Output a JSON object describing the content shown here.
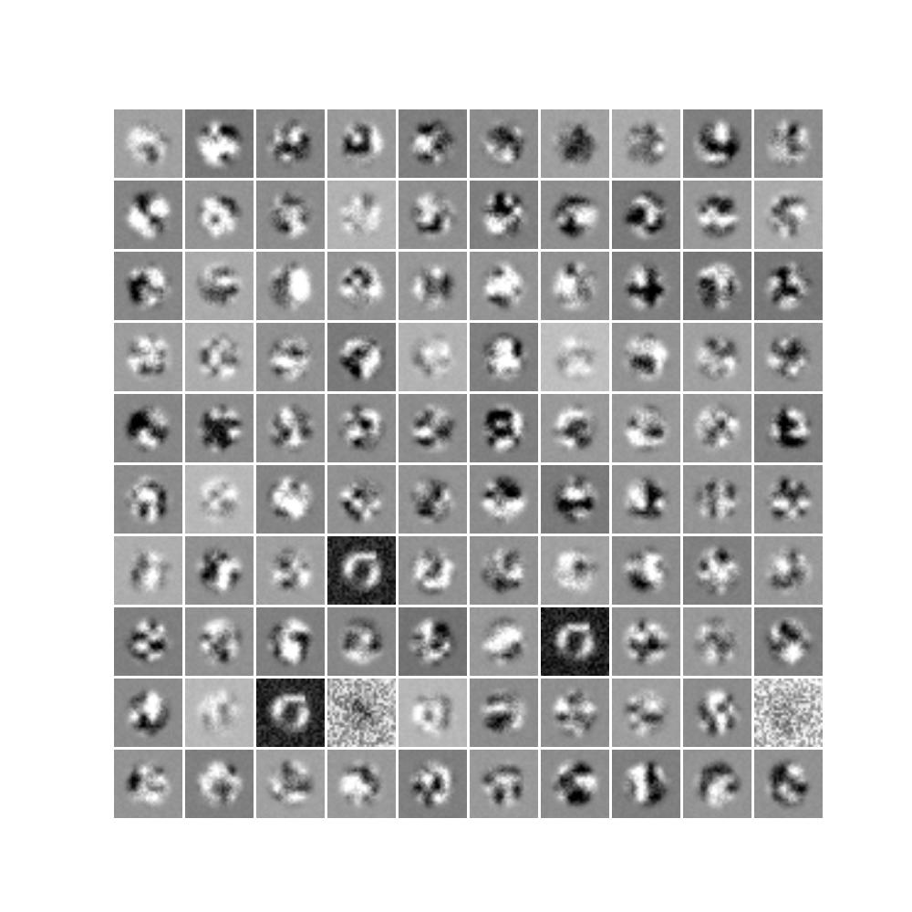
{
  "figure": {
    "rows": 10,
    "cols": 10,
    "background_color": "#ffffff",
    "colormap": "gray"
  },
  "tiles": [
    {
      "bg": 0.63,
      "c": 0.45,
      "d": 0
    },
    {
      "bg": 0.47,
      "c": 0.7,
      "d": 0
    },
    {
      "bg": 0.52,
      "c": 0.6,
      "d": 0
    },
    {
      "bg": 0.6,
      "c": 0.55,
      "d": 0
    },
    {
      "bg": 0.5,
      "c": 0.7,
      "d": 0
    },
    {
      "bg": 0.55,
      "c": 0.55,
      "d": 0
    },
    {
      "bg": 0.63,
      "c": 0.5,
      "d": 0
    },
    {
      "bg": 0.67,
      "c": 0.45,
      "d": 0
    },
    {
      "bg": 0.5,
      "c": 0.7,
      "d": 0
    },
    {
      "bg": 0.55,
      "c": 0.6,
      "d": 0
    },
    {
      "bg": 0.52,
      "c": 0.65,
      "d": 0
    },
    {
      "bg": 0.58,
      "c": 0.55,
      "d": 0
    },
    {
      "bg": 0.55,
      "c": 0.6,
      "d": 0
    },
    {
      "bg": 0.7,
      "c": 0.4,
      "d": 0
    },
    {
      "bg": 0.56,
      "c": 0.55,
      "d": 0
    },
    {
      "bg": 0.5,
      "c": 0.75,
      "d": 0
    },
    {
      "bg": 0.56,
      "c": 0.6,
      "d": 0
    },
    {
      "bg": 0.48,
      "c": 0.6,
      "d": 0
    },
    {
      "bg": 0.6,
      "c": 0.55,
      "d": 0
    },
    {
      "bg": 0.67,
      "c": 0.5,
      "d": 0
    },
    {
      "bg": 0.53,
      "c": 0.65,
      "d": 0
    },
    {
      "bg": 0.67,
      "c": 0.55,
      "d": 0
    },
    {
      "bg": 0.6,
      "c": 0.55,
      "d": 0
    },
    {
      "bg": 0.58,
      "c": 0.6,
      "d": 0
    },
    {
      "bg": 0.6,
      "c": 0.5,
      "d": 0
    },
    {
      "bg": 0.58,
      "c": 0.55,
      "d": 0
    },
    {
      "bg": 0.57,
      "c": 0.6,
      "d": 0
    },
    {
      "bg": 0.5,
      "c": 0.65,
      "d": 0
    },
    {
      "bg": 0.47,
      "c": 0.75,
      "d": 0
    },
    {
      "bg": 0.47,
      "c": 0.7,
      "d": 0
    },
    {
      "bg": 0.62,
      "c": 0.6,
      "d": 0
    },
    {
      "bg": 0.68,
      "c": 0.45,
      "d": 0
    },
    {
      "bg": 0.57,
      "c": 0.6,
      "d": 0
    },
    {
      "bg": 0.48,
      "c": 0.7,
      "d": 0
    },
    {
      "bg": 0.7,
      "c": 0.35,
      "d": 0
    },
    {
      "bg": 0.5,
      "c": 0.7,
      "d": 0
    },
    {
      "bg": 0.75,
      "c": 0.3,
      "d": 0
    },
    {
      "bg": 0.58,
      "c": 0.6,
      "d": 0
    },
    {
      "bg": 0.63,
      "c": 0.5,
      "d": 0
    },
    {
      "bg": 0.58,
      "c": 0.55,
      "d": 0
    },
    {
      "bg": 0.53,
      "c": 0.65,
      "d": 0
    },
    {
      "bg": 0.55,
      "c": 0.65,
      "d": 0
    },
    {
      "bg": 0.57,
      "c": 0.6,
      "d": 0
    },
    {
      "bg": 0.55,
      "c": 0.65,
      "d": 0
    },
    {
      "bg": 0.55,
      "c": 0.6,
      "d": 0
    },
    {
      "bg": 0.5,
      "c": 0.75,
      "d": 0
    },
    {
      "bg": 0.6,
      "c": 0.55,
      "d": 0
    },
    {
      "bg": 0.6,
      "c": 0.55,
      "d": 0
    },
    {
      "bg": 0.6,
      "c": 0.55,
      "d": 0
    },
    {
      "bg": 0.5,
      "c": 0.7,
      "d": 0
    },
    {
      "bg": 0.55,
      "c": 0.65,
      "d": 0
    },
    {
      "bg": 0.72,
      "c": 0.35,
      "d": 0
    },
    {
      "bg": 0.52,
      "c": 0.65,
      "d": 0
    },
    {
      "bg": 0.57,
      "c": 0.6,
      "d": 0
    },
    {
      "bg": 0.58,
      "c": 0.55,
      "d": 0
    },
    {
      "bg": 0.55,
      "c": 0.65,
      "d": 0
    },
    {
      "bg": 0.48,
      "c": 0.7,
      "d": 0
    },
    {
      "bg": 0.58,
      "c": 0.55,
      "d": 0
    },
    {
      "bg": 0.58,
      "c": 0.55,
      "d": 0
    },
    {
      "bg": 0.58,
      "c": 0.6,
      "d": 0
    },
    {
      "bg": 0.68,
      "c": 0.45,
      "d": 0
    },
    {
      "bg": 0.57,
      "c": 0.6,
      "d": 0
    },
    {
      "bg": 0.63,
      "c": 0.5,
      "d": 0
    },
    {
      "bg": 0.15,
      "c": 0.85,
      "d": 1
    },
    {
      "bg": 0.57,
      "c": 0.6,
      "d": 0
    },
    {
      "bg": 0.57,
      "c": 0.65,
      "d": 0
    },
    {
      "bg": 0.63,
      "c": 0.5,
      "d": 0
    },
    {
      "bg": 0.55,
      "c": 0.55,
      "d": 0
    },
    {
      "bg": 0.5,
      "c": 0.65,
      "d": 0
    },
    {
      "bg": 0.6,
      "c": 0.55,
      "d": 0
    },
    {
      "bg": 0.5,
      "c": 0.65,
      "d": 0
    },
    {
      "bg": 0.57,
      "c": 0.6,
      "d": 0
    },
    {
      "bg": 0.5,
      "c": 0.7,
      "d": 0
    },
    {
      "bg": 0.53,
      "c": 0.6,
      "d": 0
    },
    {
      "bg": 0.45,
      "c": 0.7,
      "d": 0
    },
    {
      "bg": 0.6,
      "c": 0.55,
      "d": 0
    },
    {
      "bg": 0.12,
      "c": 0.85,
      "d": 1
    },
    {
      "bg": 0.57,
      "c": 0.6,
      "d": 0
    },
    {
      "bg": 0.6,
      "c": 0.55,
      "d": 0
    },
    {
      "bg": 0.5,
      "c": 0.7,
      "d": 0
    },
    {
      "bg": 0.55,
      "c": 0.65,
      "d": 0
    },
    {
      "bg": 0.72,
      "c": 0.35,
      "d": 0
    },
    {
      "bg": 0.15,
      "c": 0.85,
      "d": 1
    },
    {
      "bg": 0.72,
      "c": 0.6,
      "d": 2
    },
    {
      "bg": 0.72,
      "c": 0.4,
      "d": 0
    },
    {
      "bg": 0.55,
      "c": 0.65,
      "d": 0
    },
    {
      "bg": 0.56,
      "c": 0.6,
      "d": 0
    },
    {
      "bg": 0.62,
      "c": 0.5,
      "d": 0
    },
    {
      "bg": 0.55,
      "c": 0.6,
      "d": 0
    },
    {
      "bg": 0.78,
      "c": 0.6,
      "d": 2
    },
    {
      "bg": 0.58,
      "c": 0.6,
      "d": 0
    },
    {
      "bg": 0.5,
      "c": 0.6,
      "d": 0
    },
    {
      "bg": 0.63,
      "c": 0.55,
      "d": 0
    },
    {
      "bg": 0.6,
      "c": 0.55,
      "d": 0
    },
    {
      "bg": 0.5,
      "c": 0.7,
      "d": 0
    },
    {
      "bg": 0.6,
      "c": 0.55,
      "d": 0
    },
    {
      "bg": 0.55,
      "c": 0.65,
      "d": 0
    },
    {
      "bg": 0.5,
      "c": 0.65,
      "d": 0
    },
    {
      "bg": 0.58,
      "c": 0.55,
      "d": 0
    },
    {
      "bg": 0.57,
      "c": 0.6,
      "d": 0
    }
  ]
}
